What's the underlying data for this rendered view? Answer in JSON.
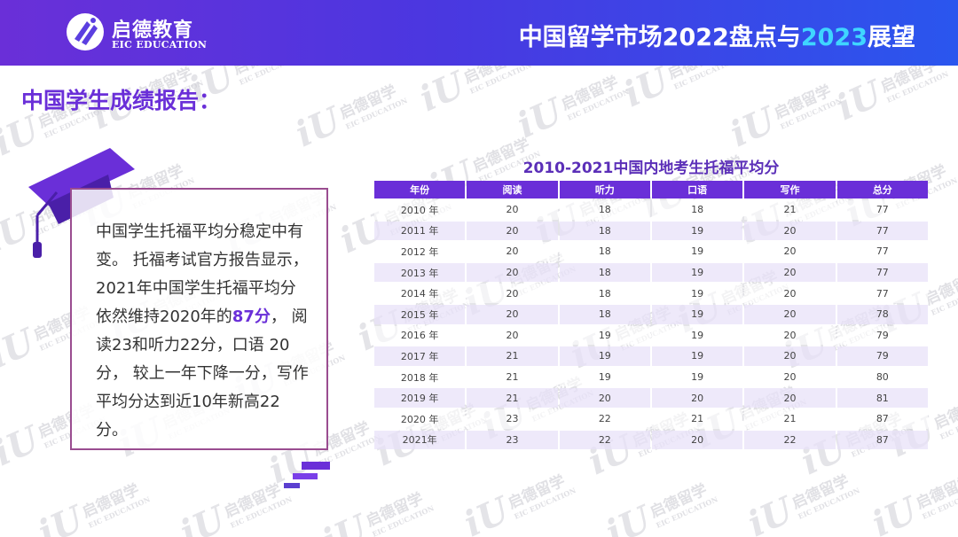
{
  "header": {
    "brand_cn": "启德教育",
    "brand_en": "EIC EDUCATION",
    "title_prefix": "中国留学市场2022盘点与",
    "title_highlight": "2023",
    "title_suffix": "展望"
  },
  "watermark": {
    "cn": "启德留学",
    "en": "EIC EDUCATION",
    "mark": "iU"
  },
  "section_title": "中国学生成绩报告：",
  "note": {
    "text_1": "中国学生托福平均分稳定中有变。 托福考试官方报告显示，2021年中国学生托福平均分依然维持2020年的",
    "highlight": "87分",
    "text_2": "， 阅读23和听力22分，口语 20分， 较上一年下降一分，写作平均分达到近10年新高22分。"
  },
  "table": {
    "title": "2010-2021中国内地考生托福平均分",
    "headers": [
      "年份",
      "阅读",
      "听力",
      "口语",
      "写作",
      "总分"
    ],
    "rows": [
      [
        "2010 年",
        "20",
        "18",
        "18",
        "21",
        "77"
      ],
      [
        "2011 年",
        "20",
        "18",
        "19",
        "20",
        "77"
      ],
      [
        "2012 年",
        "20",
        "18",
        "19",
        "20",
        "77"
      ],
      [
        "2013 年",
        "20",
        "18",
        "19",
        "20",
        "77"
      ],
      [
        "2014 年",
        "20",
        "18",
        "19",
        "20",
        "77"
      ],
      [
        "2015 年",
        "20",
        "18",
        "19",
        "20",
        "78"
      ],
      [
        "2016 年",
        "20",
        "19",
        "19",
        "20",
        "79"
      ],
      [
        "2017 年",
        "21",
        "19",
        "19",
        "20",
        "79"
      ],
      [
        "2018 年",
        "21",
        "19",
        "19",
        "20",
        "80"
      ],
      [
        "2019 年",
        "21",
        "20",
        "20",
        "20",
        "81"
      ],
      [
        "2020 年",
        "23",
        "22",
        "21",
        "21",
        "87"
      ],
      [
        "2021年",
        "23",
        "22",
        "20",
        "22",
        "87"
      ]
    ]
  },
  "colors": {
    "accent_purple": "#6a2fd8",
    "header_blue": "#2a56ee",
    "highlight_cyan": "#3fd6ff",
    "box_border": "#9a4d90"
  }
}
